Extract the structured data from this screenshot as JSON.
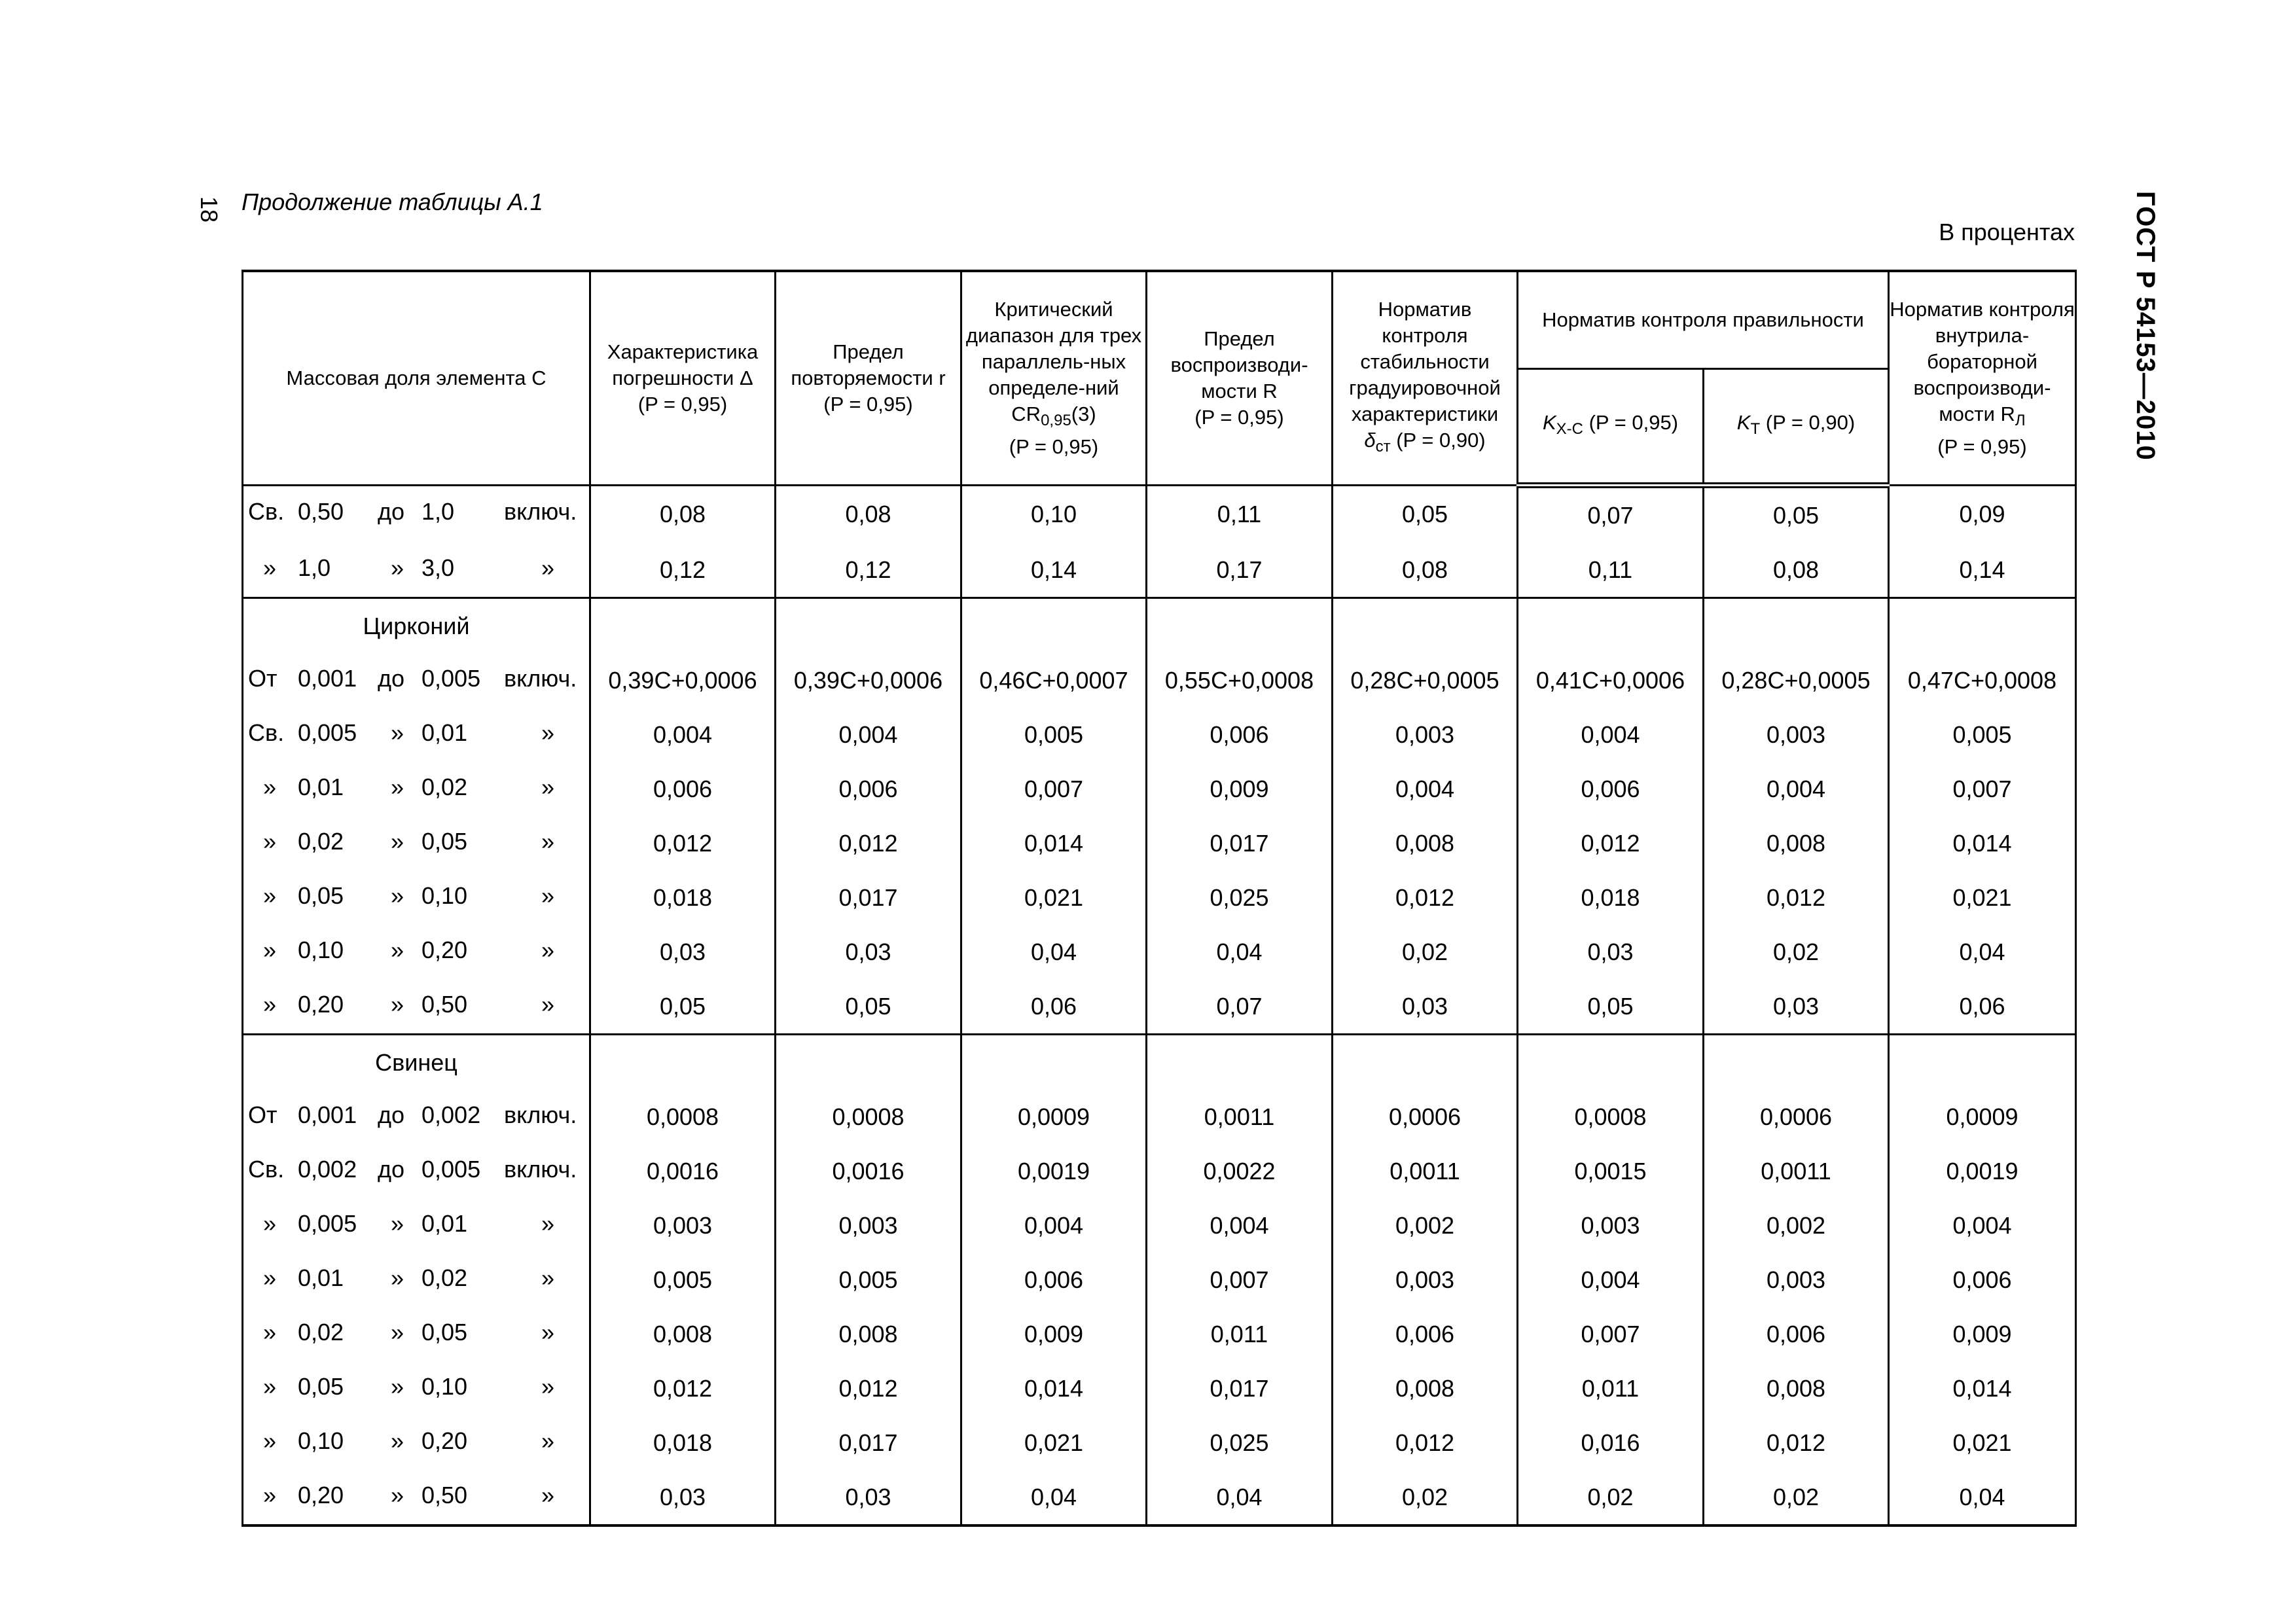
{
  "page_number": "18",
  "caption": "Продолжение таблицы А.1",
  "units": "В процентах",
  "standard": "ГОСТ Р 54153—2010",
  "header": {
    "col0": "Массовая доля элемента C",
    "col1": {
      "text": "Характеристика погрешности Δ",
      "prob": "(P = 0,95)"
    },
    "col2": {
      "text": "Предел повторяемости r",
      "prob": "(P = 0,95)"
    },
    "col3": {
      "text": "Критический диапазон для трех параллель-ных определе-ний CR",
      "sub": "0,95",
      "after": "(3)",
      "prob": "(P = 0,95)"
    },
    "col4": {
      "text": "Предел воспроизводи-мости R",
      "prob": "(P = 0,95)"
    },
    "col5": {
      "text": "Норматив контроля стабильности градуировочной характеристики",
      "sym": "δ",
      "sub": "ст",
      "prob": "(P = 0,90)"
    },
    "group": "Норматив контроля правильности",
    "col6": {
      "sym": "K",
      "sub": "Х-С",
      "prob": "(P = 0,95)"
    },
    "col7": {
      "sym": "K",
      "sub": "Т",
      "prob": "(P = 0,90)"
    },
    "col8": {
      "text": "Норматив контроля внутрила-бораторной воспроизводи-мости R",
      "sub": "Л",
      "prob": "(P = 0,95)"
    }
  },
  "sections": [
    {
      "element": "",
      "rows": [
        {
          "pre": "Св.",
          "from": "0,50",
          "to_word": "до",
          "to": "1,0",
          "post": "включ.",
          "values": [
            "0,08",
            "0,08",
            "0,10",
            "0,11",
            "0,05",
            "0,07",
            "0,05",
            "0,09"
          ]
        },
        {
          "pre": "»",
          "from": "1,0",
          "to_word": "»",
          "to": "3,0",
          "post": "»",
          "values": [
            "0,12",
            "0,12",
            "0,14",
            "0,17",
            "0,08",
            "0,11",
            "0,08",
            "0,14"
          ]
        }
      ]
    },
    {
      "element": "Цирконий",
      "rows": [
        {
          "pre": "От",
          "from": "0,001",
          "to_word": "до",
          "to": "0,005",
          "post": "включ.",
          "values": [
            "0,39C+0,0006",
            "0,39C+0,0006",
            "0,46C+0,0007",
            "0,55C+0,0008",
            "0,28C+0,0005",
            "0,41C+0,0006",
            "0,28C+0,0005",
            "0,47C+0,0008"
          ]
        },
        {
          "pre": "Св.",
          "from": "0,005",
          "to_word": "»",
          "to": "0,01",
          "post": "»",
          "values": [
            "0,004",
            "0,004",
            "0,005",
            "0,006",
            "0,003",
            "0,004",
            "0,003",
            "0,005"
          ]
        },
        {
          "pre": "»",
          "from": "0,01",
          "to_word": "»",
          "to": "0,02",
          "post": "»",
          "values": [
            "0,006",
            "0,006",
            "0,007",
            "0,009",
            "0,004",
            "0,006",
            "0,004",
            "0,007"
          ]
        },
        {
          "pre": "»",
          "from": "0,02",
          "to_word": "»",
          "to": "0,05",
          "post": "»",
          "values": [
            "0,012",
            "0,012",
            "0,014",
            "0,017",
            "0,008",
            "0,012",
            "0,008",
            "0,014"
          ]
        },
        {
          "pre": "»",
          "from": "0,05",
          "to_word": "»",
          "to": "0,10",
          "post": "»",
          "values": [
            "0,018",
            "0,017",
            "0,021",
            "0,025",
            "0,012",
            "0,018",
            "0,012",
            "0,021"
          ]
        },
        {
          "pre": "»",
          "from": "0,10",
          "to_word": "»",
          "to": "0,20",
          "post": "»",
          "values": [
            "0,03",
            "0,03",
            "0,04",
            "0,04",
            "0,02",
            "0,03",
            "0,02",
            "0,04"
          ]
        },
        {
          "pre": "»",
          "from": "0,20",
          "to_word": "»",
          "to": "0,50",
          "post": "»",
          "values": [
            "0,05",
            "0,05",
            "0,06",
            "0,07",
            "0,03",
            "0,05",
            "0,03",
            "0,06"
          ]
        }
      ]
    },
    {
      "element": "Свинец",
      "rows": [
        {
          "pre": "От",
          "from": "0,001",
          "to_word": "до",
          "to": "0,002",
          "post": "включ.",
          "values": [
            "0,0008",
            "0,0008",
            "0,0009",
            "0,0011",
            "0,0006",
            "0,0008",
            "0,0006",
            "0,0009"
          ]
        },
        {
          "pre": "Св.",
          "from": "0,002",
          "to_word": "до",
          "to": "0,005",
          "post": "включ.",
          "values": [
            "0,0016",
            "0,0016",
            "0,0019",
            "0,0022",
            "0,0011",
            "0,0015",
            "0,0011",
            "0,0019"
          ]
        },
        {
          "pre": "»",
          "from": "0,005",
          "to_word": "»",
          "to": "0,01",
          "post": "»",
          "values": [
            "0,003",
            "0,003",
            "0,004",
            "0,004",
            "0,002",
            "0,003",
            "0,002",
            "0,004"
          ]
        },
        {
          "pre": "»",
          "from": "0,01",
          "to_word": "»",
          "to": "0,02",
          "post": "»",
          "values": [
            "0,005",
            "0,005",
            "0,006",
            "0,007",
            "0,003",
            "0,004",
            "0,003",
            "0,006"
          ]
        },
        {
          "pre": "»",
          "from": "0,02",
          "to_word": "»",
          "to": "0,05",
          "post": "»",
          "values": [
            "0,008",
            "0,008",
            "0,009",
            "0,011",
            "0,006",
            "0,007",
            "0,006",
            "0,009"
          ]
        },
        {
          "pre": "»",
          "from": "0,05",
          "to_word": "»",
          "to": "0,10",
          "post": "»",
          "values": [
            "0,012",
            "0,012",
            "0,014",
            "0,017",
            "0,008",
            "0,011",
            "0,008",
            "0,014"
          ]
        },
        {
          "pre": "»",
          "from": "0,10",
          "to_word": "»",
          "to": "0,20",
          "post": "»",
          "values": [
            "0,018",
            "0,017",
            "0,021",
            "0,025",
            "0,012",
            "0,016",
            "0,012",
            "0,021"
          ]
        },
        {
          "pre": "»",
          "from": "0,20",
          "to_word": "»",
          "to": "0,50",
          "post": "»",
          "values": [
            "0,03",
            "0,03",
            "0,04",
            "0,04",
            "0,02",
            "0,02",
            "0,02",
            "0,04"
          ]
        }
      ]
    }
  ]
}
